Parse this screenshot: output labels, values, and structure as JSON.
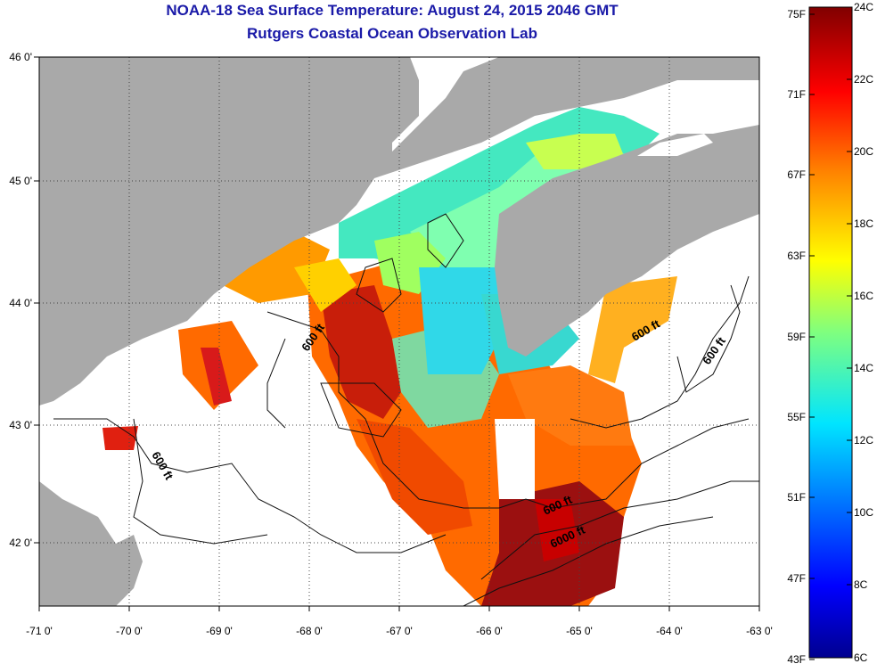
{
  "title_line1": "NOAA-18 Sea Surface Temperature:  August 24, 2015 2046 GMT",
  "title_line2": "Rutgers Coastal Ocean Observation Lab",
  "map": {
    "lon_ticks": [
      "-71 0'",
      "-70 0'",
      "-69 0'",
      "-68 0'",
      "-67 0'",
      "-66 0'",
      "-65 0'",
      "-64 0'",
      "-63 0'"
    ],
    "lat_ticks": [
      "46 0'",
      "45 0'",
      "44 0'",
      "43 0'",
      "42 0'"
    ],
    "contour_labels": [
      "600 ft",
      "600 ft",
      "600 ft",
      "600 ft",
      "600 ft",
      "6000 ft"
    ],
    "colors": {
      "land": "#a9a9a9",
      "no_data": "#ffffff",
      "grid": "#555555"
    }
  },
  "colorbar": {
    "fahrenheit_labels": [
      "75F",
      "71F",
      "67F",
      "63F",
      "59F",
      "55F",
      "51F",
      "47F",
      "43F"
    ],
    "celsius_labels": [
      "24C",
      "22C",
      "20C",
      "18C",
      "16C",
      "14C",
      "12C",
      "10C",
      "8C",
      "6C"
    ]
  }
}
